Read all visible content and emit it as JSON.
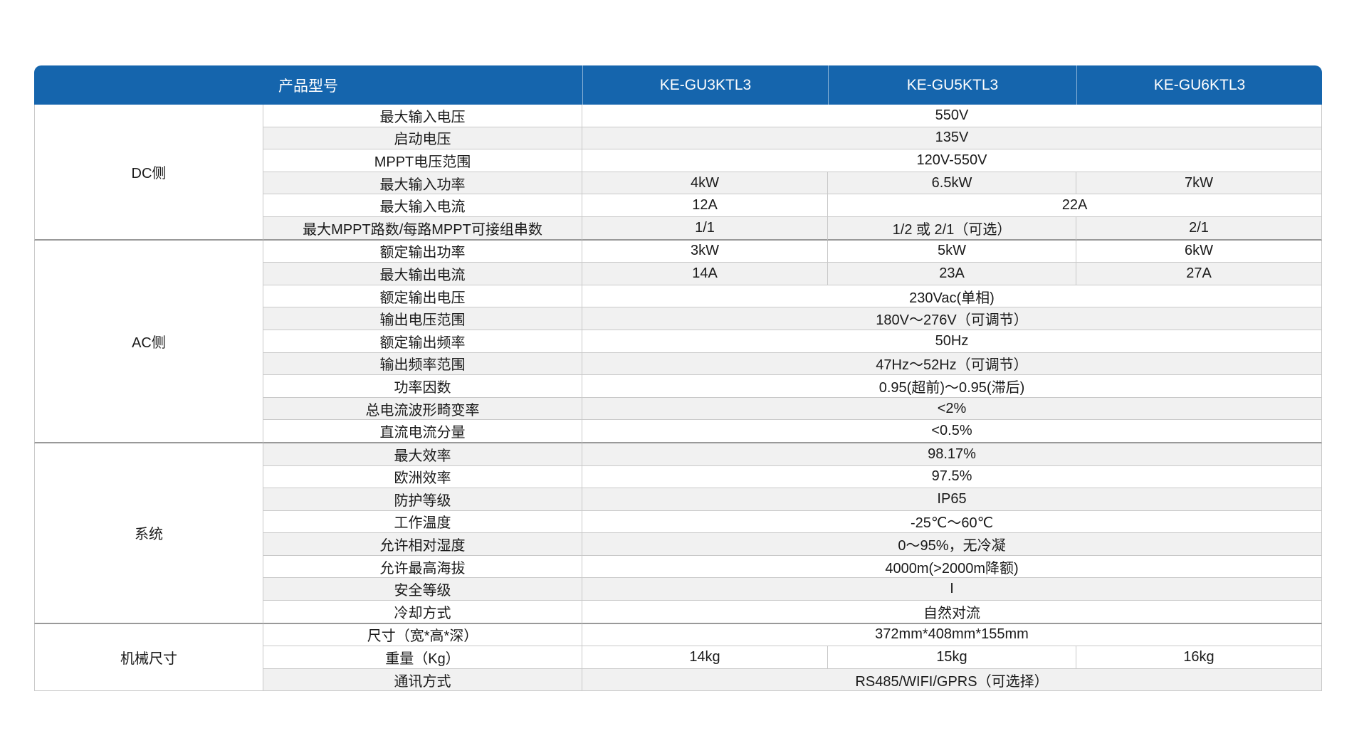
{
  "colors": {
    "header_blue": "#1565ad",
    "header_text": "#ffffff",
    "row_stripe": "#f1f1f1",
    "grid_border": "#c9c9c9",
    "section_border": "#999999",
    "body_text": "#1a1a1a"
  },
  "header": {
    "product_model_label": "产品型号",
    "models": [
      "KE-GU3KTL3",
      "KE-GU5KTL3",
      "KE-GU6KTL3"
    ]
  },
  "sections": [
    {
      "name": "DC侧",
      "rows": [
        {
          "param": "最大输入电压",
          "shaded": false,
          "values": [
            {
              "text": "550V",
              "span": 3
            }
          ]
        },
        {
          "param": "启动电压",
          "shaded": true,
          "values": [
            {
              "text": "135V",
              "span": 3
            }
          ]
        },
        {
          "param": "MPPT电压范围",
          "shaded": false,
          "values": [
            {
              "text": "120V-550V",
              "span": 3
            }
          ]
        },
        {
          "param": "最大输入功率",
          "shaded": true,
          "values": [
            {
              "text": "4kW",
              "span": 1
            },
            {
              "text": "6.5kW",
              "span": 1
            },
            {
              "text": "7kW",
              "span": 1
            }
          ]
        },
        {
          "param": "最大输入电流",
          "shaded": false,
          "values": [
            {
              "text": "12A",
              "span": 1
            },
            {
              "text": "22A",
              "span": 2
            }
          ]
        },
        {
          "param": "最大MPPT路数/每路MPPT可接组串数",
          "shaded": true,
          "values": [
            {
              "text": "1/1",
              "span": 1
            },
            {
              "text": "1/2 或 2/1（可选）",
              "span": 1
            },
            {
              "text": "2/1",
              "span": 1
            }
          ]
        }
      ]
    },
    {
      "name": "AC侧",
      "rows": [
        {
          "param": "额定输出功率",
          "shaded": false,
          "values": [
            {
              "text": "3kW",
              "span": 1
            },
            {
              "text": "5kW",
              "span": 1
            },
            {
              "text": "6kW",
              "span": 1
            }
          ]
        },
        {
          "param": "最大输出电流",
          "shaded": true,
          "values": [
            {
              "text": "14A",
              "span": 1
            },
            {
              "text": "23A",
              "span": 1
            },
            {
              "text": "27A",
              "span": 1
            }
          ]
        },
        {
          "param": "额定输出电压",
          "shaded": false,
          "values": [
            {
              "text": "230Vac(单相)",
              "span": 3
            }
          ]
        },
        {
          "param": "输出电压范围",
          "shaded": true,
          "values": [
            {
              "text": "180V～276V（可调节）",
              "span": 3
            }
          ]
        },
        {
          "param": "额定输出频率",
          "shaded": false,
          "values": [
            {
              "text": "50Hz",
              "span": 3
            }
          ]
        },
        {
          "param": "输出频率范围",
          "shaded": true,
          "values": [
            {
              "text": "47Hz～52Hz（可调节）",
              "span": 3
            }
          ]
        },
        {
          "param": "功率因数",
          "shaded": false,
          "values": [
            {
              "text": "0.95(超前)～0.95(滞后)",
              "span": 3
            }
          ]
        },
        {
          "param": "总电流波形畸变率",
          "shaded": true,
          "values": [
            {
              "text": "<2%",
              "span": 3
            }
          ]
        },
        {
          "param": "直流电流分量",
          "shaded": false,
          "values": [
            {
              "text": "<0.5%",
              "span": 3
            }
          ]
        }
      ]
    },
    {
      "name": "系统",
      "rows": [
        {
          "param": "最大效率",
          "shaded": true,
          "values": [
            {
              "text": "98.17%",
              "span": 3
            }
          ]
        },
        {
          "param": "欧洲效率",
          "shaded": false,
          "values": [
            {
              "text": "97.5%",
              "span": 3
            }
          ]
        },
        {
          "param": "防护等级",
          "shaded": true,
          "values": [
            {
              "text": "IP65",
              "span": 3
            }
          ]
        },
        {
          "param": "工作温度",
          "shaded": false,
          "values": [
            {
              "text": "-25℃～60℃",
              "span": 3
            }
          ]
        },
        {
          "param": "允许相对湿度",
          "shaded": true,
          "values": [
            {
              "text": "0～95%，无冷凝",
              "span": 3
            }
          ]
        },
        {
          "param": "允许最高海拔",
          "shaded": false,
          "values": [
            {
              "text": "4000m(>2000m降额)",
              "span": 3
            }
          ]
        },
        {
          "param": "安全等级",
          "shaded": true,
          "values": [
            {
              "text": "I",
              "span": 3
            }
          ]
        },
        {
          "param": "冷却方式",
          "shaded": false,
          "values": [
            {
              "text": "自然对流",
              "span": 3
            }
          ]
        }
      ]
    },
    {
      "name": "机械尺寸",
      "rows": [
        {
          "param": "尺寸（宽*高*深）",
          "shaded": false,
          "values": [
            {
              "text": "372mm*408mm*155mm",
              "span": 3
            }
          ]
        },
        {
          "param": "重量（Kg）",
          "shaded": false,
          "values": [
            {
              "text": "14kg",
              "span": 1
            },
            {
              "text": "15kg",
              "span": 1
            },
            {
              "text": "16kg",
              "span": 1
            }
          ]
        },
        {
          "param": "通讯方式",
          "shaded": true,
          "values": [
            {
              "text": "RS485/WIFI/GPRS（可选择）",
              "span": 3
            }
          ]
        }
      ]
    }
  ]
}
